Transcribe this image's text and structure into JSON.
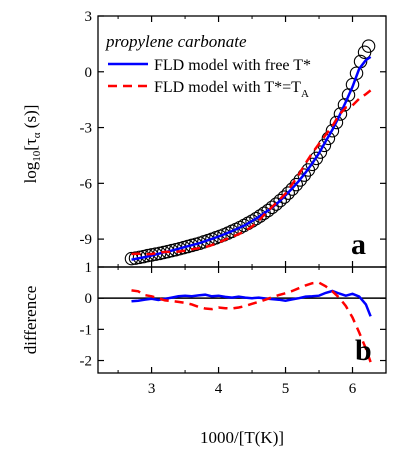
{
  "chart_data": [
    {
      "panel": "a",
      "type": "scatter",
      "panel_label": "a",
      "legend_title": "propylene carbonate",
      "xlabel": "1000/[T(K)]",
      "ylabel": "log10[τα (s)]",
      "ylabel_parts": {
        "prefix": "log",
        "log_sub": "10",
        "bracket_open": "[τ",
        "tau_sub": "α",
        "suffix": " (s)]"
      },
      "xlim": [
        2.2,
        6.5
      ],
      "ylim": [
        -10.5,
        3
      ],
      "xticks": [
        "3",
        "4",
        "5",
        "6"
      ],
      "yticks": [
        "-9",
        "-6",
        "-3",
        "0",
        "3"
      ],
      "legend_position": "top-left",
      "series": [
        {
          "name": "data",
          "kind": "markers",
          "marker": "open-circle",
          "color": "#000000",
          "points": [
            [
              2.7,
              -10.05
            ],
            [
              2.76,
              -10.02
            ],
            [
              2.82,
              -9.98
            ],
            [
              2.88,
              -9.94
            ],
            [
              2.94,
              -9.89
            ],
            [
              3.0,
              -9.85
            ],
            [
              3.06,
              -9.81
            ],
            [
              3.12,
              -9.77
            ],
            [
              3.18,
              -9.72
            ],
            [
              3.24,
              -9.67
            ],
            [
              3.3,
              -9.62
            ],
            [
              3.36,
              -9.57
            ],
            [
              3.42,
              -9.52
            ],
            [
              3.48,
              -9.46
            ],
            [
              3.54,
              -9.4
            ],
            [
              3.6,
              -9.34
            ],
            [
              3.66,
              -9.28
            ],
            [
              3.72,
              -9.22
            ],
            [
              3.78,
              -9.15
            ],
            [
              3.84,
              -9.08
            ],
            [
              3.9,
              -9.01
            ],
            [
              3.96,
              -8.93
            ],
            [
              4.02,
              -8.85
            ],
            [
              4.08,
              -8.77
            ],
            [
              4.14,
              -8.68
            ],
            [
              4.2,
              -8.58
            ],
            [
              4.26,
              -8.48
            ],
            [
              4.32,
              -8.38
            ],
            [
              4.38,
              -8.27
            ],
            [
              4.44,
              -8.15
            ],
            [
              4.5,
              -8.03
            ],
            [
              4.56,
              -7.9
            ],
            [
              4.62,
              -7.76
            ],
            [
              4.68,
              -7.61
            ],
            [
              4.74,
              -7.46
            ],
            [
              4.8,
              -7.29
            ],
            [
              4.86,
              -7.12
            ],
            [
              4.92,
              -6.93
            ],
            [
              4.98,
              -6.74
            ],
            [
              5.04,
              -6.53
            ],
            [
              5.1,
              -6.31
            ],
            [
              5.16,
              -6.07
            ],
            [
              5.22,
              -5.82
            ],
            [
              5.28,
              -5.56
            ],
            [
              5.34,
              -5.28
            ],
            [
              5.4,
              -4.98
            ],
            [
              5.46,
              -4.66
            ],
            [
              5.52,
              -4.32
            ],
            [
              5.58,
              -3.96
            ],
            [
              5.64,
              -3.58
            ],
            [
              5.7,
              -3.17
            ],
            [
              5.76,
              -2.73
            ],
            [
              5.82,
              -2.27
            ],
            [
              5.88,
              -1.78
            ],
            [
              5.94,
              -1.25
            ],
            [
              6.0,
              -0.69
            ],
            [
              6.06,
              -0.08
            ],
            [
              6.12,
              0.55
            ],
            [
              6.18,
              1.05
            ],
            [
              6.24,
              1.38
            ]
          ]
        },
        {
          "name": "FLD model with free T*",
          "kind": "line",
          "color": "#0000ff",
          "dash": "solid",
          "points": [
            [
              2.7,
              -10.11
            ],
            [
              2.8,
              -10.04
            ],
            [
              2.9,
              -9.97
            ],
            [
              3.0,
              -9.88
            ],
            [
              3.1,
              -9.79
            ],
            [
              3.2,
              -9.7
            ],
            [
              3.3,
              -9.62
            ],
            [
              3.4,
              -9.52
            ],
            [
              3.5,
              -9.42
            ],
            [
              3.6,
              -9.33
            ],
            [
              3.7,
              -9.23
            ],
            [
              3.8,
              -9.11
            ],
            [
              3.9,
              -8.99
            ],
            [
              4.0,
              -8.86
            ],
            [
              4.1,
              -8.72
            ],
            [
              4.2,
              -8.57
            ],
            [
              4.3,
              -8.41
            ],
            [
              4.4,
              -8.24
            ],
            [
              4.5,
              -8.03
            ],
            [
              4.6,
              -7.81
            ],
            [
              4.7,
              -7.56
            ],
            [
              4.8,
              -7.3
            ],
            [
              4.9,
              -7.0
            ],
            [
              5.0,
              -6.65
            ],
            [
              5.1,
              -6.27
            ],
            [
              5.2,
              -5.87
            ],
            [
              5.3,
              -5.42
            ],
            [
              5.4,
              -4.92
            ],
            [
              5.5,
              -4.38
            ],
            [
              5.6,
              -3.74
            ],
            [
              5.7,
              -3.12
            ],
            [
              5.8,
              -2.4
            ],
            [
              5.9,
              -1.62
            ],
            [
              6.0,
              -0.81
            ],
            [
              6.1,
              0.16
            ],
            [
              6.2,
              0.63
            ],
            [
              6.27,
              0.8
            ]
          ]
        },
        {
          "name": "FLD model with T*=T",
          "name_sub": "A",
          "kind": "line",
          "color": "#ff0000",
          "dash": "dashed",
          "points": [
            [
              2.7,
              -9.8
            ],
            [
              2.8,
              -9.78
            ],
            [
              2.9,
              -9.82
            ],
            [
              3.0,
              -9.8
            ],
            [
              3.1,
              -9.73
            ],
            [
              3.2,
              -9.69
            ],
            [
              3.3,
              -9.68
            ],
            [
              3.4,
              -9.67
            ],
            [
              3.5,
              -9.62
            ],
            [
              3.6,
              -9.55
            ],
            [
              3.7,
              -9.49
            ],
            [
              3.8,
              -9.43
            ],
            [
              3.9,
              -9.32
            ],
            [
              4.0,
              -9.19
            ],
            [
              4.1,
              -9.02
            ],
            [
              4.2,
              -8.88
            ],
            [
              4.3,
              -8.73
            ],
            [
              4.4,
              -8.56
            ],
            [
              4.5,
              -8.32
            ],
            [
              4.6,
              -8.01
            ],
            [
              4.7,
              -7.61
            ],
            [
              4.8,
              -7.27
            ],
            [
              4.9,
              -6.92
            ],
            [
              5.0,
              -6.55
            ],
            [
              5.1,
              -6.05
            ],
            [
              5.2,
              -5.52
            ],
            [
              5.3,
              -4.92
            ],
            [
              5.4,
              -4.37
            ],
            [
              5.5,
              -3.88
            ],
            [
              5.6,
              -3.39
            ],
            [
              5.7,
              -2.92
            ],
            [
              5.8,
              -2.32
            ],
            [
              5.9,
              -1.92
            ],
            [
              6.0,
              -1.81
            ],
            [
              6.1,
              -1.45
            ],
            [
              6.2,
              -1.2
            ],
            [
              6.27,
              -1.0
            ]
          ]
        }
      ]
    },
    {
      "panel": "b",
      "type": "line",
      "panel_label": "b",
      "xlabel": "1000/[T(K)]",
      "ylabel": "difference",
      "xlim": [
        2.2,
        6.5
      ],
      "ylim": [
        -2.4,
        1
      ],
      "xticks": [
        "3",
        "4",
        "5",
        "6"
      ],
      "yticks": [
        "-2",
        "-1",
        "0",
        "1"
      ],
      "reference_line": 0,
      "series": [
        {
          "name": "FLD model with free T*",
          "color": "#0000ff",
          "dash": "solid",
          "points": [
            [
              2.7,
              -0.1
            ],
            [
              2.8,
              -0.08
            ],
            [
              2.9,
              -0.05
            ],
            [
              3.0,
              -0.02
            ],
            [
              3.1,
              -0.06
            ],
            [
              3.2,
              -0.02
            ],
            [
              3.3,
              0.02
            ],
            [
              3.4,
              0.06
            ],
            [
              3.5,
              0.08
            ],
            [
              3.6,
              0.06
            ],
            [
              3.7,
              0.09
            ],
            [
              3.8,
              0.11
            ],
            [
              3.9,
              0.06
            ],
            [
              4.0,
              0.08
            ],
            [
              4.1,
              0.04
            ],
            [
              4.2,
              0.02
            ],
            [
              4.3,
              0.05
            ],
            [
              4.4,
              0.02
            ],
            [
              4.5,
              0.0
            ],
            [
              4.6,
              0.02
            ],
            [
              4.7,
              -0.01
            ],
            [
              4.8,
              -0.03
            ],
            [
              4.9,
              -0.05
            ],
            [
              5.0,
              -0.08
            ],
            [
              5.1,
              -0.04
            ],
            [
              5.2,
              0.0
            ],
            [
              5.3,
              0.05
            ],
            [
              5.4,
              0.06
            ],
            [
              5.5,
              0.08
            ],
            [
              5.6,
              0.17
            ],
            [
              5.7,
              0.23
            ],
            [
              5.8,
              0.15
            ],
            [
              5.9,
              0.08
            ],
            [
              6.0,
              0.14
            ],
            [
              6.1,
              0.05
            ],
            [
              6.2,
              -0.2
            ],
            [
              6.27,
              -0.58
            ]
          ]
        },
        {
          "name": "FLD model with T*=T",
          "name_sub": "A",
          "color": "#ff0000",
          "dash": "dashed",
          "points": [
            [
              2.7,
              0.25
            ],
            [
              2.8,
              0.22
            ],
            [
              2.9,
              0.1
            ],
            [
              3.0,
              0.06
            ],
            [
              3.1,
              0.0
            ],
            [
              3.2,
              -0.07
            ],
            [
              3.3,
              -0.09
            ],
            [
              3.4,
              -0.12
            ],
            [
              3.5,
              -0.15
            ],
            [
              3.6,
              -0.2
            ],
            [
              3.7,
              -0.28
            ],
            [
              3.8,
              -0.33
            ],
            [
              3.9,
              -0.35
            ],
            [
              4.0,
              -0.3
            ],
            [
              4.1,
              -0.32
            ],
            [
              4.2,
              -0.33
            ],
            [
              4.3,
              -0.3
            ],
            [
              4.4,
              -0.25
            ],
            [
              4.5,
              -0.18
            ],
            [
              4.6,
              -0.12
            ],
            [
              4.7,
              -0.05
            ],
            [
              4.8,
              0.03
            ],
            [
              4.9,
              0.1
            ],
            [
              5.0,
              0.16
            ],
            [
              5.1,
              0.23
            ],
            [
              5.2,
              0.32
            ],
            [
              5.3,
              0.41
            ],
            [
              5.4,
              0.48
            ],
            [
              5.5,
              0.5
            ],
            [
              5.6,
              0.38
            ],
            [
              5.7,
              0.22
            ],
            [
              5.8,
              0.02
            ],
            [
              5.9,
              -0.25
            ],
            [
              6.0,
              -0.62
            ],
            [
              6.1,
              -1.1
            ],
            [
              6.2,
              -1.62
            ],
            [
              6.27,
              -2.05
            ]
          ]
        }
      ]
    }
  ]
}
